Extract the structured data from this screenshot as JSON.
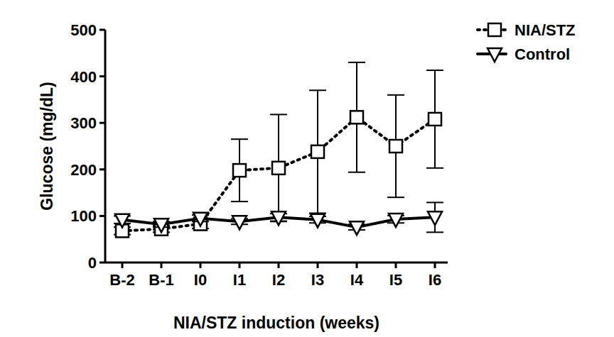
{
  "chart_data": {
    "type": "line",
    "x_label": "NIA/STZ induction (weeks)",
    "y_label": "Glucose (mg/dL)",
    "categories": [
      "B-2",
      "B-1",
      "I0",
      "I1",
      "I2",
      "I3",
      "I4",
      "I5",
      "I6"
    ],
    "ylim": [
      0,
      500
    ],
    "yticks": [
      0,
      100,
      200,
      300,
      400,
      500
    ],
    "grid": false,
    "legend": "right",
    "series": [
      {
        "name": "NIA/STZ",
        "color": "#000000",
        "marker": "square",
        "line_style": "dotted",
        "values": [
          68,
          72,
          83,
          198,
          203,
          238,
          312,
          250,
          308
        ],
        "errors": [
          8,
          7,
          10,
          67,
          115,
          132,
          118,
          110,
          105
        ]
      },
      {
        "name": "Control",
        "color": "#000000",
        "marker": "triangle-down",
        "line_style": "solid",
        "values": [
          92,
          82,
          95,
          88,
          97,
          92,
          76,
          93,
          97
        ],
        "errors": [
          8,
          6,
          7,
          6,
          8,
          7,
          6,
          8,
          32
        ]
      }
    ]
  }
}
